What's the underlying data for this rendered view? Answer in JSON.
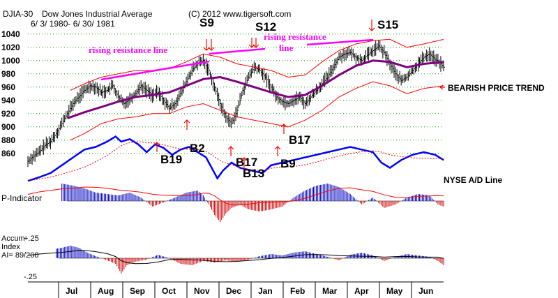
{
  "chart_data": {
    "type": "line",
    "index_label": "DJIA-30",
    "title": "Dow Jones Industrial Average",
    "copyright": "(C) 2012 www.tigersoft.com",
    "date_range": "6/ 3/ 1980- 6/ 30/ 1981",
    "months": [
      "Jul",
      "Aug",
      "Sep",
      "Oct",
      "Nov",
      "Dec",
      "Jan",
      "Feb",
      "Mar",
      "Apr",
      "May",
      "Jun"
    ],
    "y_ticks": [
      1040,
      1020,
      1000,
      980,
      960,
      940,
      920,
      900,
      880,
      860
    ],
    "ylim": [
      845,
      1045
    ],
    "djia_close": [
      [
        0,
        848
      ],
      [
        4,
        856
      ],
      [
        8,
        862
      ],
      [
        12,
        872
      ],
      [
        16,
        878
      ],
      [
        20,
        890
      ],
      [
        24,
        905
      ],
      [
        28,
        920
      ],
      [
        32,
        935
      ],
      [
        36,
        945
      ],
      [
        40,
        955
      ],
      [
        44,
        962
      ],
      [
        48,
        960
      ],
      [
        52,
        952
      ],
      [
        56,
        955
      ],
      [
        60,
        962
      ],
      [
        64,
        945
      ],
      [
        68,
        935
      ],
      [
        72,
        942
      ],
      [
        76,
        950
      ],
      [
        80,
        962
      ],
      [
        84,
        955
      ],
      [
        88,
        948
      ],
      [
        92,
        952
      ],
      [
        96,
        940
      ],
      [
        100,
        928
      ],
      [
        104,
        935
      ],
      [
        108,
        950
      ],
      [
        112,
        968
      ],
      [
        116,
        985
      ],
      [
        120,
        995
      ],
      [
        124,
        1000
      ],
      [
        128,
        985
      ],
      [
        132,
        960
      ],
      [
        136,
        935
      ],
      [
        140,
        915
      ],
      [
        144,
        905
      ],
      [
        148,
        925
      ],
      [
        152,
        955
      ],
      [
        156,
        975
      ],
      [
        160,
        990
      ],
      [
        164,
        985
      ],
      [
        168,
        975
      ],
      [
        172,
        960
      ],
      [
        176,
        945
      ],
      [
        180,
        938
      ],
      [
        184,
        935
      ],
      [
        188,
        940
      ],
      [
        192,
        945
      ],
      [
        196,
        935
      ],
      [
        200,
        945
      ],
      [
        204,
        955
      ],
      [
        208,
        965
      ],
      [
        212,
        975
      ],
      [
        216,
        990
      ],
      [
        220,
        1005
      ],
      [
        224,
        1010
      ],
      [
        228,
        1012
      ],
      [
        232,
        1005
      ],
      [
        236,
        1000
      ],
      [
        240,
        1008
      ],
      [
        244,
        1015
      ],
      [
        248,
        1022
      ],
      [
        252,
        1012
      ],
      [
        256,
        995
      ],
      [
        260,
        980
      ],
      [
        264,
        970
      ],
      [
        268,
        975
      ],
      [
        272,
        985
      ],
      [
        276,
        995
      ],
      [
        280,
        1005
      ],
      [
        284,
        1010
      ],
      [
        288,
        1002
      ],
      [
        292,
        995
      ],
      [
        294,
        990
      ]
    ],
    "ma_short": [
      [
        28,
        913
      ],
      [
        40,
        922
      ],
      [
        52,
        930
      ],
      [
        64,
        938
      ],
      [
        76,
        945
      ],
      [
        88,
        948
      ],
      [
        100,
        952
      ],
      [
        112,
        962
      ],
      [
        124,
        972
      ],
      [
        136,
        975
      ],
      [
        148,
        968
      ],
      [
        160,
        960
      ],
      [
        172,
        952
      ],
      [
        184,
        945
      ],
      [
        196,
        948
      ],
      [
        208,
        962
      ],
      [
        220,
        978
      ],
      [
        232,
        992
      ],
      [
        244,
        1000
      ],
      [
        256,
        998
      ],
      [
        268,
        990
      ],
      [
        280,
        995
      ],
      [
        294,
        998
      ]
    ],
    "upper_band": [
      [
        30,
        955
      ],
      [
        40,
        965
      ],
      [
        52,
        975
      ],
      [
        64,
        980
      ],
      [
        76,
        985
      ],
      [
        88,
        985
      ],
      [
        100,
        988
      ],
      [
        112,
        998
      ],
      [
        124,
        1010
      ],
      [
        136,
        1005
      ],
      [
        148,
        995
      ],
      [
        160,
        990
      ],
      [
        172,
        985
      ],
      [
        184,
        975
      ],
      [
        196,
        978
      ],
      [
        208,
        998
      ],
      [
        220,
        1015
      ],
      [
        232,
        1025
      ],
      [
        244,
        1030
      ],
      [
        256,
        1032
      ],
      [
        268,
        1020
      ],
      [
        280,
        1025
      ],
      [
        294,
        1032
      ]
    ],
    "lower_band": [
      [
        30,
        880
      ],
      [
        40,
        890
      ],
      [
        52,
        905
      ],
      [
        64,
        912
      ],
      [
        76,
        915
      ],
      [
        88,
        920
      ],
      [
        100,
        920
      ],
      [
        112,
        930
      ],
      [
        124,
        935
      ],
      [
        136,
        925
      ],
      [
        148,
        915
      ],
      [
        160,
        910
      ],
      [
        172,
        905
      ],
      [
        184,
        900
      ],
      [
        196,
        910
      ],
      [
        208,
        925
      ],
      [
        220,
        945
      ],
      [
        232,
        958
      ],
      [
        244,
        968
      ],
      [
        256,
        962
      ],
      [
        268,
        950
      ],
      [
        280,
        958
      ],
      [
        294,
        962
      ]
    ],
    "ad_line": [
      [
        0,
        -15
      ],
      [
        8,
        -8
      ],
      [
        16,
        0
      ],
      [
        24,
        15
      ],
      [
        32,
        30
      ],
      [
        40,
        45
      ],
      [
        48,
        50
      ],
      [
        56,
        60
      ],
      [
        62,
        70
      ],
      [
        66,
        60
      ],
      [
        72,
        65
      ],
      [
        78,
        55
      ],
      [
        84,
        40
      ],
      [
        90,
        55
      ],
      [
        96,
        48
      ],
      [
        102,
        35
      ],
      [
        108,
        45
      ],
      [
        114,
        50
      ],
      [
        120,
        40
      ],
      [
        126,
        30
      ],
      [
        130,
        10
      ],
      [
        134,
        -10
      ],
      [
        138,
        5
      ],
      [
        144,
        20
      ],
      [
        150,
        10
      ],
      [
        158,
        5
      ],
      [
        166,
        0
      ],
      [
        172,
        15
      ],
      [
        180,
        20
      ],
      [
        188,
        25
      ],
      [
        196,
        30
      ],
      [
        204,
        35
      ],
      [
        212,
        40
      ],
      [
        220,
        45
      ],
      [
        228,
        50
      ],
      [
        236,
        45
      ],
      [
        244,
        40
      ],
      [
        250,
        20
      ],
      [
        256,
        10
      ],
      [
        264,
        25
      ],
      [
        272,
        35
      ],
      [
        280,
        40
      ],
      [
        288,
        35
      ],
      [
        294,
        25
      ]
    ],
    "p_indicator": [
      [
        0,
        5
      ],
      [
        8,
        15
      ],
      [
        16,
        20
      ],
      [
        24,
        25
      ],
      [
        32,
        22
      ],
      [
        40,
        18
      ],
      [
        48,
        12
      ],
      [
        56,
        10
      ],
      [
        64,
        8
      ],
      [
        72,
        12
      ],
      [
        80,
        5
      ],
      [
        88,
        -8
      ],
      [
        96,
        -2
      ],
      [
        104,
        5
      ],
      [
        112,
        12
      ],
      [
        120,
        15
      ],
      [
        124,
        8
      ],
      [
        128,
        -5
      ],
      [
        132,
        -20
      ],
      [
        136,
        -30
      ],
      [
        140,
        -18
      ],
      [
        144,
        -10
      ],
      [
        150,
        -5
      ],
      [
        156,
        -12
      ],
      [
        164,
        -15
      ],
      [
        172,
        -12
      ],
      [
        180,
        -8
      ],
      [
        188,
        5
      ],
      [
        196,
        15
      ],
      [
        204,
        22
      ],
      [
        212,
        25
      ],
      [
        220,
        20
      ],
      [
        228,
        10
      ],
      [
        236,
        -5
      ],
      [
        244,
        5
      ],
      [
        252,
        -10
      ],
      [
        260,
        -5
      ],
      [
        268,
        5
      ],
      [
        276,
        10
      ],
      [
        284,
        8
      ],
      [
        290,
        -5
      ],
      [
        294,
        -8
      ]
    ],
    "accum_index": [
      [
        0,
        5
      ],
      [
        8,
        10
      ],
      [
        16,
        12
      ],
      [
        24,
        15
      ],
      [
        30,
        18
      ],
      [
        36,
        15
      ],
      [
        42,
        8
      ],
      [
        48,
        3
      ],
      [
        56,
        -3
      ],
      [
        62,
        -8
      ],
      [
        66,
        -22
      ],
      [
        70,
        -10
      ],
      [
        76,
        -5
      ],
      [
        84,
        -2
      ],
      [
        92,
        5
      ],
      [
        100,
        0
      ],
      [
        108,
        -8
      ],
      [
        116,
        -10
      ],
      [
        124,
        -4
      ],
      [
        132,
        -6
      ],
      [
        140,
        -3
      ],
      [
        148,
        -5
      ],
      [
        156,
        -2
      ],
      [
        164,
        3
      ],
      [
        172,
        6
      ],
      [
        180,
        4
      ],
      [
        188,
        8
      ],
      [
        196,
        10
      ],
      [
        204,
        6
      ],
      [
        212,
        2
      ],
      [
        220,
        -3
      ],
      [
        228,
        5
      ],
      [
        236,
        8
      ],
      [
        244,
        4
      ],
      [
        252,
        -4
      ],
      [
        260,
        2
      ],
      [
        268,
        6
      ],
      [
        276,
        4
      ],
      [
        284,
        2
      ],
      [
        290,
        -4
      ],
      [
        294,
        -10
      ]
    ],
    "annotations": {
      "resistance_label_1": "rising resistance line",
      "resistance_label_2a": "rising resistance",
      "resistance_label_2b": "line",
      "bearish": "BEARISH PRICE TREND",
      "nyse": "NYSE A/D Line",
      "p_indicator_label": "P-Indicator",
      "accum_label_1": "Accum",
      "accum_label_2": "Index",
      "accum_label_3": "AI= 89/200",
      "accum_top": "+.25",
      "accum_bottom": "-.25"
    },
    "signals": {
      "S9": "S9",
      "S12": "S12",
      "S15": "S15",
      "B2": "B2",
      "B19": "B19",
      "B17a": "B17",
      "B13": "B13",
      "B9": "B9",
      "B17b": "B17"
    }
  }
}
